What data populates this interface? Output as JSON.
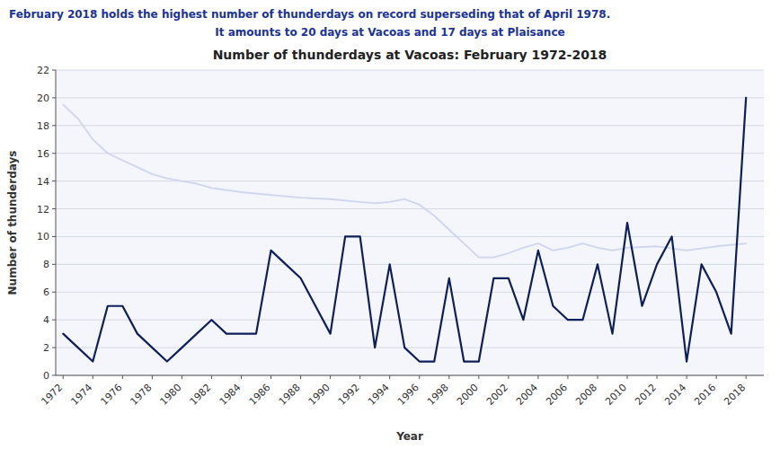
{
  "chart_data": {
    "type": "line",
    "title": "Number of thunderdays at Vacoas: February 1972-2018",
    "annotations": [
      "February 2018 holds the highest number of thunderdays on record superseding that of April 1978.",
      "It amounts to 20 days at Vacoas and 17 days at Plaisance"
    ],
    "xlabel": "Year",
    "ylabel": "Number of thunderdays",
    "series": [
      {
        "color": "#0d1f5c",
        "x": [
          1972,
          1973,
          1974,
          1975,
          1976,
          1977,
          1978,
          1979,
          1980,
          1981,
          1982,
          1983,
          1984,
          1985,
          1986,
          1987,
          1988,
          1989,
          1990,
          1991,
          1992,
          1993,
          1994,
          1995,
          1996,
          1997,
          1998,
          1999,
          2000,
          2001,
          2002,
          2003,
          2004,
          2005,
          2006,
          2007,
          2008,
          2009,
          2010,
          2011,
          2012,
          2013,
          2014,
          2015,
          2016,
          2017,
          2018
        ],
        "values": [
          3,
          2,
          1,
          5,
          5,
          3,
          2,
          1,
          2,
          3,
          4,
          3,
          3,
          3,
          9,
          8,
          7,
          5,
          3,
          10,
          10,
          2,
          8,
          2,
          1,
          1,
          7,
          1,
          1,
          7,
          7,
          4,
          9,
          5,
          4,
          4,
          8,
          3,
          11,
          5,
          8,
          10,
          1,
          8,
          6,
          3,
          20
        ]
      },
      {
        "color": "#d0d5ee",
        "x": [
          1972,
          1973,
          1974,
          1975,
          1976,
          1977,
          1978,
          1979,
          1980,
          1981,
          1982,
          1984,
          1986,
          1988,
          1990,
          1992,
          1993
        ],
        "values": [
          19.5,
          18.5,
          17.0,
          16.0,
          15.5,
          15.0,
          14.5,
          14.2,
          14.0,
          13.8,
          13.5,
          13.2,
          13.0,
          12.8,
          12.7,
          12.5,
          12.4
        ]
      },
      {
        "color": "#d0d5ee",
        "x": [
          1993,
          1994,
          1995,
          1996,
          1997,
          1998,
          1999,
          2000,
          2001,
          2002,
          2003,
          2004,
          2005,
          2006,
          2007,
          2008,
          2009,
          2010,
          2012,
          2014,
          2016,
          2018
        ],
        "values": [
          12.4,
          12.5,
          12.7,
          12.3,
          11.5,
          10.5,
          9.5,
          8.5,
          8.5,
          8.8,
          9.2,
          9.5,
          9.0,
          9.2,
          9.5,
          9.2,
          9.0,
          9.2,
          9.3,
          9.0,
          9.3,
          9.5
        ]
      }
    ],
    "xlim": [
      1971.5,
      2019.2
    ],
    "xticks": [
      1972,
      1974,
      1976,
      1978,
      1980,
      1982,
      1984,
      1986,
      1988,
      1990,
      1992,
      1994,
      1996,
      1998,
      2000,
      2002,
      2004,
      2006,
      2008,
      2010,
      2012,
      2014,
      2016,
      2018
    ],
    "ylim": [
      0,
      22
    ],
    "yticks": [
      0,
      2,
      4,
      6,
      8,
      10,
      12,
      14,
      16,
      18,
      20,
      22
    ],
    "grid": true
  }
}
